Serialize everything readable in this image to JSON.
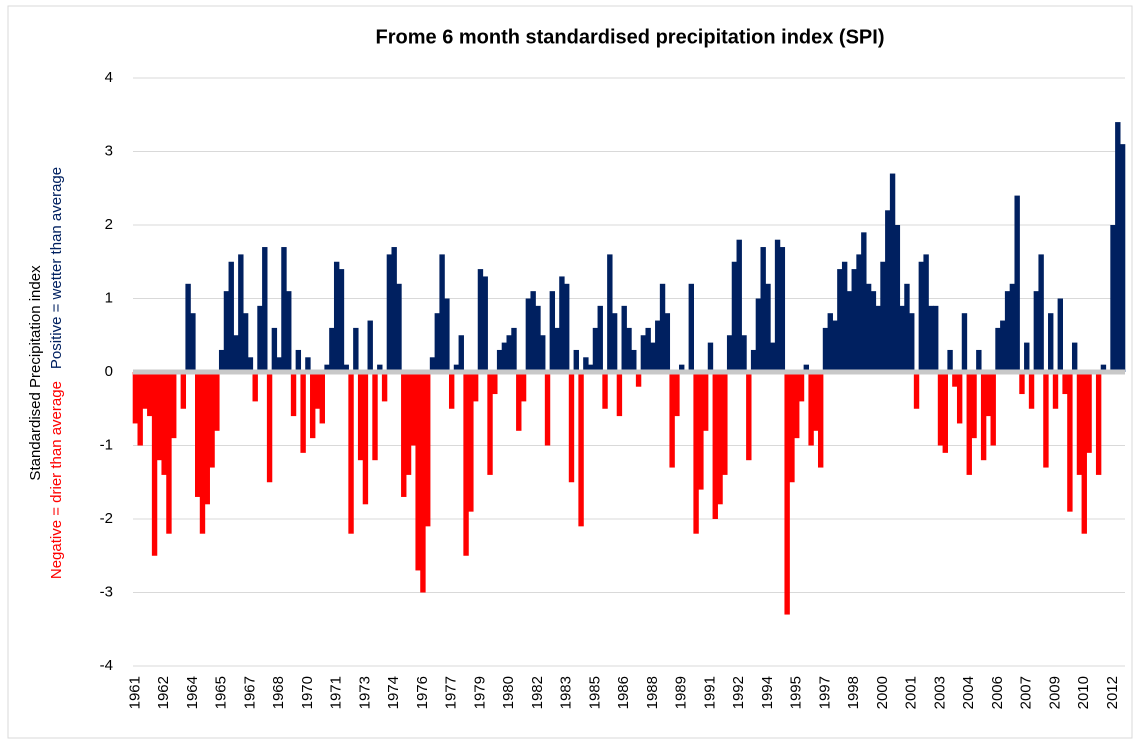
{
  "chart_data": {
    "type": "bar",
    "title": "Frome 6 month standardised precipitation index (SPI)",
    "y_label": "Standardised Precipitation index",
    "y_label_negative": "Negative = drier than average",
    "y_label_positive": "Positive = wetter than average",
    "colors": {
      "positive": "#002060",
      "negative": "#ff0000"
    },
    "ylim": [
      -4,
      4
    ],
    "yticks": [
      -4,
      -3,
      -2,
      -1,
      0,
      1,
      2,
      3,
      4
    ],
    "grid": true,
    "categories": [
      "1961",
      null,
      null,
      null,
      null,
      null,
      "1962",
      null,
      null,
      null,
      null,
      null,
      "1964",
      null,
      null,
      null,
      null,
      null,
      "1965",
      null,
      null,
      null,
      null,
      null,
      "1967",
      null,
      null,
      null,
      null,
      null,
      "1968",
      null,
      null,
      null,
      null,
      null,
      "1970",
      null,
      null,
      null,
      null,
      null,
      "1971",
      null,
      null,
      null,
      null,
      null,
      "1973",
      null,
      null,
      null,
      null,
      null,
      "1974",
      null,
      null,
      null,
      null,
      null,
      "1976",
      null,
      null,
      null,
      null,
      null,
      "1977",
      null,
      null,
      null,
      null,
      null,
      "1979",
      null,
      null,
      null,
      null,
      null,
      "1980",
      null,
      null,
      null,
      null,
      null,
      "1982",
      null,
      null,
      null,
      null,
      null,
      "1983",
      null,
      null,
      null,
      null,
      null,
      "1985",
      null,
      null,
      null,
      null,
      null,
      "1986",
      null,
      null,
      null,
      null,
      null,
      "1988",
      null,
      null,
      null,
      null,
      null,
      "1989",
      null,
      null,
      null,
      null,
      null,
      "1991",
      null,
      null,
      null,
      null,
      null,
      "1992",
      null,
      null,
      null,
      null,
      null,
      "1994",
      null,
      null,
      null,
      null,
      null,
      "1995",
      null,
      null,
      null,
      null,
      null,
      "1997",
      null,
      null,
      null,
      null,
      null,
      "1998",
      null,
      null,
      null,
      null,
      null,
      "2000",
      null,
      null,
      null,
      null,
      null,
      "2001",
      null,
      null,
      null,
      null,
      null,
      "2003",
      null,
      null,
      null,
      null,
      null,
      "2004",
      null,
      null,
      null,
      null,
      null,
      "2006",
      null,
      null,
      null,
      null,
      null,
      "2007",
      null,
      null,
      null,
      null,
      null,
      "2009",
      null,
      null,
      null,
      null,
      null,
      "2010",
      null,
      null,
      null,
      null,
      null,
      "2012",
      null,
      null
    ],
    "values": [
      -0.7,
      -1.0,
      -0.5,
      -0.6,
      -2.5,
      -1.2,
      -1.4,
      -2.2,
      -0.9,
      0,
      -0.5,
      1.2,
      0.8,
      -1.7,
      -2.2,
      -1.8,
      -1.3,
      -0.8,
      0.3,
      1.1,
      1.5,
      0.5,
      1.6,
      0.8,
      0.2,
      -0.4,
      0.9,
      1.7,
      -1.5,
      0.6,
      0.2,
      1.7,
      1.1,
      -0.6,
      0.3,
      -1.1,
      0.2,
      -0.9,
      -0.5,
      -0.7,
      0.1,
      0.6,
      1.5,
      1.4,
      0.1,
      -2.2,
      0.6,
      -1.2,
      -1.8,
      0.7,
      -1.2,
      0.1,
      -0.4,
      1.6,
      1.7,
      1.2,
      -1.7,
      -1.4,
      -1.0,
      -2.7,
      -3.0,
      -2.1,
      0.2,
      0.8,
      1.6,
      1.0,
      -0.5,
      0.1,
      0.5,
      -2.5,
      -1.9,
      -0.4,
      1.4,
      1.3,
      -1.4,
      -0.3,
      0.3,
      0.4,
      0.5,
      0.6,
      -0.8,
      -0.4,
      1.0,
      1.1,
      0.9,
      0.5,
      -1.0,
      1.1,
      0.6,
      1.3,
      1.2,
      -1.5,
      0.3,
      -2.1,
      0.2,
      0.1,
      0.6,
      0.9,
      -0.5,
      1.6,
      0.8,
      -0.6,
      0.9,
      0.6,
      0.3,
      -0.2,
      0.5,
      0.6,
      0.4,
      0.7,
      1.2,
      0.8,
      -1.3,
      -0.6,
      0.1,
      0,
      1.2,
      -2.2,
      -1.6,
      -0.8,
      0.4,
      -2.0,
      -1.8,
      -1.4,
      0.5,
      1.5,
      1.8,
      0.5,
      -1.2,
      0.3,
      1.0,
      1.7,
      1.2,
      0.4,
      1.8,
      1.7,
      -3.3,
      -1.5,
      -0.9,
      -0.4,
      0.1,
      -1.0,
      -0.8,
      -1.3,
      0.6,
      0.8,
      0.7,
      1.4,
      1.5,
      1.1,
      1.4,
      1.6,
      1.9,
      1.2,
      1.1,
      0.9,
      1.5,
      2.2,
      2.7,
      2.0,
      0.9,
      1.2,
      0.8,
      -0.5,
      1.5,
      1.6,
      0.9,
      0.9,
      -1.0,
      -1.1,
      0.3,
      -0.2,
      -0.7,
      0.8,
      -1.4,
      -0.9,
      0.3,
      -1.2,
      -0.6,
      -1.0,
      0.6,
      0.7,
      1.1,
      1.2,
      2.4,
      -0.3,
      0.4,
      -0.5,
      1.1,
      1.6,
      -1.3,
      0.8,
      -0.5,
      1.0,
      -0.3,
      -1.9,
      0.4,
      -1.4,
      -2.2,
      -1.1,
      0,
      -1.4,
      0.1,
      0,
      2.0,
      3.4,
      3.1
    ]
  }
}
